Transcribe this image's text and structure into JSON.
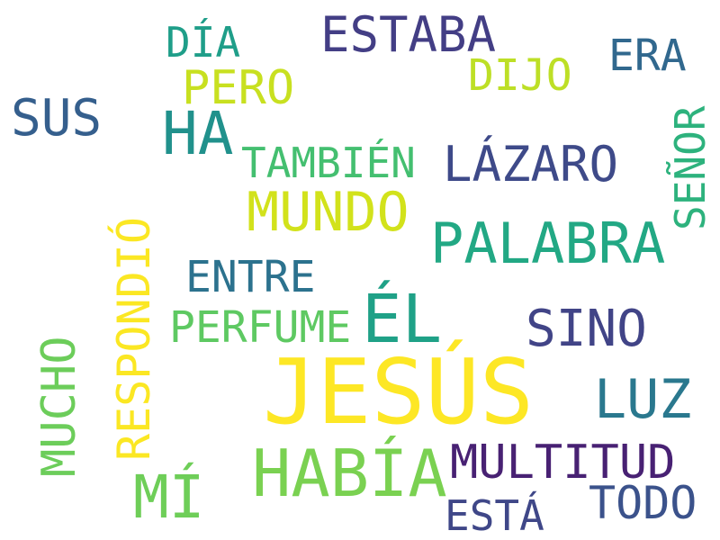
{
  "words": {
    "jesus": {
      "text": "JESÚS",
      "color": "#fde725"
    },
    "habia": {
      "text": "HABÍA",
      "color": "#7ad151"
    },
    "palabra": {
      "text": "PALABRA",
      "color": "#22a884"
    },
    "ha": {
      "text": "HA",
      "color": "#21918c"
    },
    "el": {
      "text": "ÉL",
      "color": "#1fa187"
    },
    "estaba": {
      "text": "ESTABA",
      "color": "#433e85"
    },
    "lazaro": {
      "text": "LÁZARO",
      "color": "#3e4a89"
    },
    "mundo": {
      "text": "MUNDO",
      "color": "#d2e21b"
    },
    "multitud": {
      "text": "MULTITUD",
      "color": "#482173"
    },
    "mi": {
      "text": "MÍ",
      "color": "#6ece58"
    },
    "luz": {
      "text": "LUZ",
      "color": "#2a788e"
    },
    "sino": {
      "text": "SINO",
      "color": "#414487"
    },
    "respondio": {
      "text": "RESPONDIÓ",
      "color": "#fbe723"
    },
    "mucho": {
      "text": "MUCHO",
      "color": "#6ccd5a"
    },
    "sus": {
      "text": "SUS",
      "color": "#355f8d"
    },
    "pero": {
      "text": "PERO",
      "color": "#c8e020"
    },
    "todo": {
      "text": "TODO",
      "color": "#3b528b"
    },
    "entre": {
      "text": "ENTRE",
      "color": "#2c728e"
    },
    "perfume": {
      "text": "PERFUME",
      "color": "#5ec962"
    },
    "tambien": {
      "text": "TAMBIÉN",
      "color": "#44bf70"
    },
    "dia": {
      "text": "DÍA",
      "color": "#1f9e89"
    },
    "era": {
      "text": "ERA",
      "color": "#31688e"
    },
    "dijo": {
      "text": "DIJO",
      "color": "#bddf26"
    },
    "senor": {
      "text": "SEÑOR",
      "color": "#2db27d"
    },
    "esta": {
      "text": "ESTÁ",
      "color": "#3f4788"
    }
  }
}
